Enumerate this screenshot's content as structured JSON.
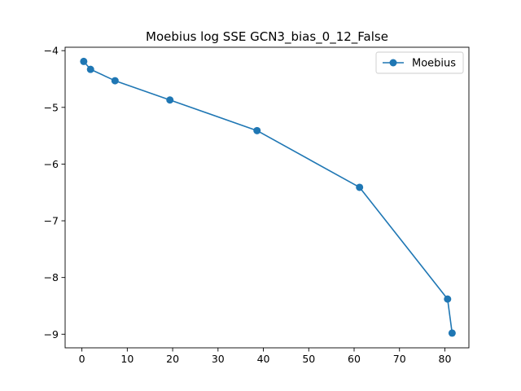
{
  "chart_data": {
    "type": "line",
    "title": "Moebius log SSE GCN3_bias_0_12_False",
    "xlabel": "",
    "ylabel": "",
    "xlim": [
      -3.7,
      85.3
    ],
    "ylim": [
      -9.24,
      -3.94
    ],
    "xticks": [
      0,
      10,
      20,
      30,
      40,
      50,
      60,
      70,
      80
    ],
    "yticks": [
      -9,
      -8,
      -7,
      -6,
      -5,
      -4
    ],
    "grid": false,
    "legend": "top-right",
    "series": [
      {
        "name": "Moebius",
        "color": "#1f77b4",
        "marker": "circle",
        "x": [
          0.4,
          1.9,
          7.3,
          19.4,
          38.6,
          61.2,
          80.6,
          81.6
        ],
        "y": [
          -4.19,
          -4.33,
          -4.53,
          -4.87,
          -5.41,
          -6.41,
          -8.38,
          -8.98
        ]
      }
    ]
  }
}
